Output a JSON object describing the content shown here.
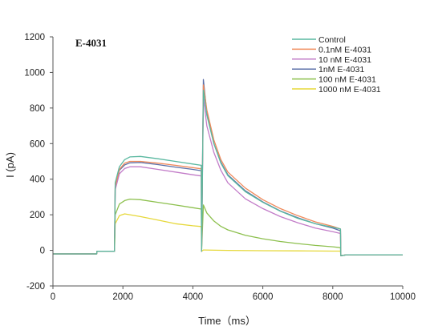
{
  "chart_data": {
    "type": "line",
    "title": "E-4031",
    "xlabel": "Time（ms）",
    "ylabel": "I (pA)",
    "xlim": [
      0,
      10000
    ],
    "ylim": [
      -200,
      1200
    ],
    "xticks": [
      0,
      2000,
      4000,
      6000,
      8000,
      10000
    ],
    "yticks": [
      -200,
      0,
      200,
      400,
      600,
      800,
      1000,
      1200
    ],
    "grid": false,
    "legend_position": "top-right",
    "series": [
      {
        "name": "Control",
        "color": "#5ab8a0",
        "points": [
          [
            0,
            -20
          ],
          [
            1250,
            -20
          ],
          [
            1260,
            -5
          ],
          [
            1760,
            -5
          ],
          [
            1780,
            380
          ],
          [
            1900,
            470
          ],
          [
            2050,
            510
          ],
          [
            2200,
            525
          ],
          [
            2500,
            528
          ],
          [
            3000,
            515
          ],
          [
            3500,
            500
          ],
          [
            4000,
            485
          ],
          [
            4240,
            478
          ],
          [
            4250,
            -5
          ],
          [
            4300,
            900
          ],
          [
            4400,
            760
          ],
          [
            4600,
            600
          ],
          [
            4800,
            490
          ],
          [
            5000,
            420
          ],
          [
            5500,
            330
          ],
          [
            6000,
            270
          ],
          [
            6500,
            220
          ],
          [
            7000,
            180
          ],
          [
            7500,
            150
          ],
          [
            8000,
            130
          ],
          [
            8220,
            120
          ],
          [
            8230,
            -30
          ],
          [
            8400,
            -25
          ],
          [
            10000,
            -25
          ]
        ]
      },
      {
        "name": "0.1nM E-4031",
        "color": "#f08a5a",
        "points": [
          [
            0,
            -20
          ],
          [
            1250,
            -20
          ],
          [
            1260,
            -5
          ],
          [
            1760,
            -5
          ],
          [
            1780,
            360
          ],
          [
            1900,
            455
          ],
          [
            2050,
            490
          ],
          [
            2200,
            500
          ],
          [
            2500,
            500
          ],
          [
            3000,
            490
          ],
          [
            3500,
            478
          ],
          [
            4000,
            465
          ],
          [
            4240,
            458
          ],
          [
            4250,
            -5
          ],
          [
            4300,
            930
          ],
          [
            4400,
            790
          ],
          [
            4600,
            620
          ],
          [
            4800,
            510
          ],
          [
            5000,
            440
          ],
          [
            5500,
            350
          ],
          [
            6000,
            285
          ],
          [
            6500,
            235
          ],
          [
            7000,
            195
          ],
          [
            7500,
            160
          ],
          [
            8000,
            135
          ],
          [
            8220,
            120
          ],
          [
            8230,
            -30
          ],
          [
            8400,
            -25
          ],
          [
            10000,
            -25
          ]
        ]
      },
      {
        "name": "10 nM E-4031",
        "color": "#c27cc8",
        "points": [
          [
            0,
            -20
          ],
          [
            1250,
            -20
          ],
          [
            1260,
            -5
          ],
          [
            1760,
            -5
          ],
          [
            1780,
            340
          ],
          [
            1900,
            430
          ],
          [
            2050,
            460
          ],
          [
            2200,
            470
          ],
          [
            2500,
            470
          ],
          [
            3000,
            455
          ],
          [
            3500,
            440
          ],
          [
            4000,
            425
          ],
          [
            4240,
            418
          ],
          [
            4250,
            -5
          ],
          [
            4300,
            860
          ],
          [
            4400,
            700
          ],
          [
            4600,
            550
          ],
          [
            4800,
            450
          ],
          [
            5000,
            380
          ],
          [
            5500,
            290
          ],
          [
            6000,
            235
          ],
          [
            6500,
            190
          ],
          [
            7000,
            155
          ],
          [
            7500,
            125
          ],
          [
            8000,
            105
          ],
          [
            8220,
            95
          ],
          [
            8230,
            -30
          ],
          [
            8400,
            -25
          ],
          [
            10000,
            -25
          ]
        ]
      },
      {
        "name": "1nM E-4031",
        "color": "#5b6fa8",
        "points": [
          [
            0,
            -20
          ],
          [
            1250,
            -20
          ],
          [
            1260,
            -5
          ],
          [
            1760,
            -5
          ],
          [
            1780,
            350
          ],
          [
            1900,
            450
          ],
          [
            2050,
            480
          ],
          [
            2200,
            492
          ],
          [
            2500,
            494
          ],
          [
            3000,
            482
          ],
          [
            3500,
            468
          ],
          [
            4000,
            455
          ],
          [
            4240,
            448
          ],
          [
            4250,
            -5
          ],
          [
            4300,
            960
          ],
          [
            4400,
            770
          ],
          [
            4600,
            600
          ],
          [
            4800,
            495
          ],
          [
            5000,
            425
          ],
          [
            5500,
            335
          ],
          [
            6000,
            272
          ],
          [
            6500,
            222
          ],
          [
            7000,
            183
          ],
          [
            7500,
            150
          ],
          [
            8000,
            125
          ],
          [
            8220,
            110
          ],
          [
            8230,
            -30
          ],
          [
            8400,
            -25
          ],
          [
            10000,
            -25
          ]
        ]
      },
      {
        "name": "100 nM E-4031",
        "color": "#8dc04e",
        "points": [
          [
            0,
            -20
          ],
          [
            1250,
            -20
          ],
          [
            1260,
            -5
          ],
          [
            1760,
            -5
          ],
          [
            1780,
            200
          ],
          [
            1900,
            260
          ],
          [
            2050,
            280
          ],
          [
            2200,
            288
          ],
          [
            2500,
            285
          ],
          [
            3000,
            270
          ],
          [
            3500,
            255
          ],
          [
            4000,
            240
          ],
          [
            4240,
            232
          ],
          [
            4250,
            -5
          ],
          [
            4300,
            255
          ],
          [
            4400,
            210
          ],
          [
            4600,
            165
          ],
          [
            4800,
            135
          ],
          [
            5000,
            115
          ],
          [
            5500,
            85
          ],
          [
            6000,
            65
          ],
          [
            6500,
            50
          ],
          [
            7000,
            38
          ],
          [
            7500,
            28
          ],
          [
            8000,
            20
          ],
          [
            8220,
            15
          ],
          [
            8230,
            -30
          ],
          [
            8400,
            -25
          ],
          [
            10000,
            -25
          ]
        ]
      },
      {
        "name": "1000 nM E-4031",
        "color": "#e6d83a",
        "points": [
          [
            0,
            -20
          ],
          [
            1250,
            -20
          ],
          [
            1260,
            -5
          ],
          [
            1760,
            -5
          ],
          [
            1780,
            150
          ],
          [
            1900,
            195
          ],
          [
            2050,
            205
          ],
          [
            2200,
            200
          ],
          [
            2500,
            190
          ],
          [
            3000,
            170
          ],
          [
            3500,
            150
          ],
          [
            4000,
            138
          ],
          [
            4240,
            134
          ],
          [
            4250,
            -5
          ],
          [
            4300,
            2
          ],
          [
            5000,
            0
          ],
          [
            6000,
            -2
          ],
          [
            7000,
            -3
          ],
          [
            8000,
            -4
          ],
          [
            8220,
            -4
          ],
          [
            8230,
            -30
          ],
          [
            8400,
            -25
          ],
          [
            10000,
            -25
          ]
        ]
      }
    ]
  }
}
